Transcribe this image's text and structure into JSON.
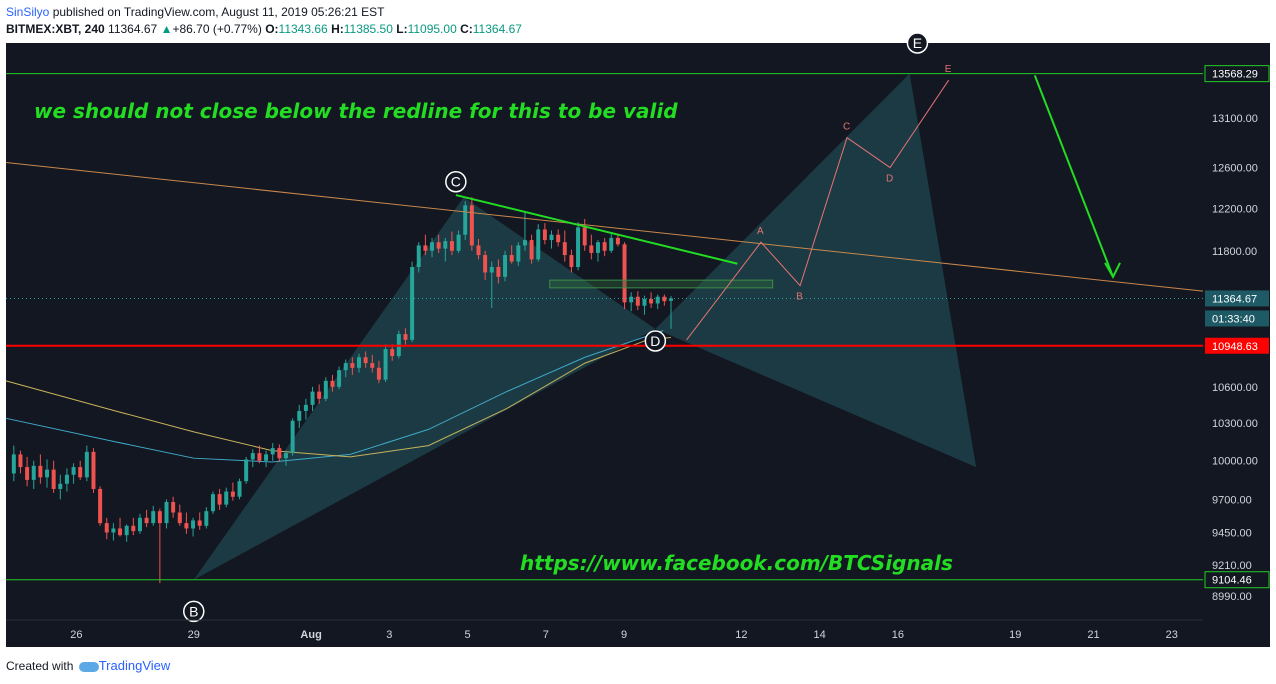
{
  "header": {
    "author": "SinSilyo",
    "published": " published on TradingView.com, August 11, 2019 05:26:21 EST",
    "symbol": "BITMEX:XBT, 240",
    "last": "11364.67",
    "change_arrow": "▲",
    "change": "+86.70 (+0.77%)",
    "o_label": "O:",
    "o": "11343.66",
    "h_label": "H:",
    "h": "11385.50",
    "l_label": "L:",
    "l": "11095.00",
    "c_label": "C:",
    "c": "11364.67"
  },
  "footer": {
    "created": "Created with",
    "brand": "TradingView"
  },
  "colors": {
    "background": "#131722",
    "bull": "#26a69a",
    "bear": "#ef5350",
    "redline": "#ff0000",
    "green": "#22dd22",
    "pattern": "#2a7a80"
  },
  "chart_data": {
    "type": "candlestick",
    "ylim": [
      8820,
      13900
    ],
    "y_scale": "log",
    "y_ticks": [
      "13100.00",
      "12600.00",
      "12200.00",
      "11800.00",
      "10600.00",
      "10300.00",
      "10000.00",
      "9700.00",
      "9450.00",
      "9210.00",
      "8990.00"
    ],
    "x_ticks": [
      {
        "label": "26",
        "x": 26
      },
      {
        "label": "29",
        "x": 29
      },
      {
        "label": "Aug",
        "x": 32
      },
      {
        "label": "3",
        "x": 34
      },
      {
        "label": "5",
        "x": 36
      },
      {
        "label": "7",
        "x": 38
      },
      {
        "label": "9",
        "x": 40
      },
      {
        "label": "12",
        "x": 43
      },
      {
        "label": "14",
        "x": 45
      },
      {
        "label": "16",
        "x": 47
      },
      {
        "label": "19",
        "x": 50
      },
      {
        "label": "21",
        "x": 52
      },
      {
        "label": "23",
        "x": 54
      }
    ],
    "x_range": [
      24.2,
      54.8
    ],
    "price_labels": [
      {
        "label": "13568.29",
        "value": 13568.29,
        "type": "green"
      },
      {
        "label": "11364.67",
        "value": 11364.67,
        "type": "last"
      },
      {
        "label": "01:33:40",
        "value": 11100,
        "type": "timer"
      },
      {
        "label": "10948.63",
        "value": 10948.63,
        "type": "red"
      },
      {
        "label": "9104.46",
        "value": 9104.46,
        "type": "green"
      }
    ],
    "horizontal_lines": [
      {
        "value": 13568.29,
        "color": "#22cc22"
      },
      {
        "value": 10948.63,
        "color": "#ff0000"
      },
      {
        "value": 9104.46,
        "color": "#22cc22"
      }
    ],
    "ohlc": [
      [
        9900,
        10120,
        9840,
        10050
      ],
      [
        10050,
        10080,
        9900,
        9950
      ],
      [
        9950,
        10030,
        9800,
        9850
      ],
      [
        9850,
        10000,
        9780,
        9960
      ],
      [
        9960,
        10050,
        9820,
        9870
      ],
      [
        9870,
        10010,
        9790,
        9930
      ],
      [
        9930,
        10000,
        9750,
        9780
      ],
      [
        9780,
        9890,
        9700,
        9820
      ],
      [
        9820,
        9940,
        9760,
        9890
      ],
      [
        9890,
        9980,
        9820,
        9950
      ],
      [
        9950,
        10000,
        9850,
        9870
      ],
      [
        9870,
        10120,
        9840,
        10070
      ],
      [
        10070,
        10100,
        9750,
        9780
      ],
      [
        9780,
        9800,
        9500,
        9520
      ],
      [
        9520,
        9560,
        9400,
        9450
      ],
      [
        9450,
        9520,
        9390,
        9480
      ],
      [
        9480,
        9560,
        9420,
        9430
      ],
      [
        9430,
        9510,
        9380,
        9500
      ],
      [
        9500,
        9560,
        9430,
        9460
      ],
      [
        9460,
        9590,
        9440,
        9560
      ],
      [
        9560,
        9620,
        9490,
        9520
      ],
      [
        9520,
        9650,
        9500,
        9610
      ],
      [
        9610,
        9630,
        9080,
        9520
      ],
      [
        9520,
        9700,
        9480,
        9680
      ],
      [
        9680,
        9720,
        9560,
        9600
      ],
      [
        9600,
        9660,
        9500,
        9520
      ],
      [
        9520,
        9600,
        9440,
        9480
      ],
      [
        9480,
        9560,
        9420,
        9540
      ],
      [
        9540,
        9600,
        9470,
        9500
      ],
      [
        9500,
        9640,
        9480,
        9610
      ],
      [
        9610,
        9760,
        9590,
        9740
      ],
      [
        9740,
        9780,
        9620,
        9660
      ],
      [
        9660,
        9790,
        9640,
        9760
      ],
      [
        9760,
        9830,
        9690,
        9720
      ],
      [
        9720,
        9860,
        9700,
        9840
      ],
      [
        9840,
        10030,
        9820,
        10010
      ],
      [
        10010,
        10090,
        9950,
        10060
      ],
      [
        10060,
        10120,
        9980,
        10000
      ],
      [
        10000,
        10080,
        9950,
        10050
      ],
      [
        10050,
        10140,
        10000,
        10100
      ],
      [
        10100,
        10130,
        9990,
        10020
      ],
      [
        10020,
        10080,
        9960,
        10060
      ],
      [
        10060,
        10340,
        10040,
        10320
      ],
      [
        10320,
        10450,
        10260,
        10400
      ],
      [
        10400,
        10500,
        10330,
        10450
      ],
      [
        10450,
        10600,
        10400,
        10560
      ],
      [
        10560,
        10620,
        10460,
        10500
      ],
      [
        10500,
        10680,
        10480,
        10650
      ],
      [
        10650,
        10700,
        10560,
        10600
      ],
      [
        10600,
        10770,
        10580,
        10740
      ],
      [
        10740,
        10830,
        10680,
        10800
      ],
      [
        10800,
        10850,
        10700,
        10760
      ],
      [
        10760,
        10880,
        10720,
        10850
      ],
      [
        10850,
        10900,
        10760,
        10800
      ],
      [
        10800,
        10870,
        10720,
        10760
      ],
      [
        10760,
        10820,
        10630,
        10660
      ],
      [
        10660,
        10960,
        10640,
        10920
      ],
      [
        10920,
        10960,
        10820,
        10860
      ],
      [
        10860,
        11080,
        10840,
        11050
      ],
      [
        11050,
        11100,
        10960,
        11000
      ],
      [
        11000,
        11700,
        10980,
        11650
      ],
      [
        11650,
        11880,
        11600,
        11850
      ],
      [
        11850,
        11950,
        11760,
        11800
      ],
      [
        11800,
        11920,
        11740,
        11880
      ],
      [
        11880,
        11950,
        11780,
        11820
      ],
      [
        11820,
        11920,
        11700,
        11890
      ],
      [
        11890,
        11980,
        11760,
        11800
      ],
      [
        11800,
        11990,
        11780,
        11950
      ],
      [
        11950,
        12270,
        11900,
        12230
      ],
      [
        12230,
        12310,
        11800,
        11850
      ],
      [
        11850,
        11910,
        11720,
        11760
      ],
      [
        11760,
        11800,
        11530,
        11600
      ],
      [
        11600,
        11700,
        11280,
        11650
      ],
      [
        11650,
        11720,
        11500,
        11560
      ],
      [
        11560,
        11800,
        11520,
        11760
      ],
      [
        11760,
        11850,
        11680,
        11700
      ],
      [
        11700,
        11880,
        11660,
        11850
      ],
      [
        11850,
        12170,
        11800,
        11900
      ],
      [
        11900,
        11950,
        11680,
        11720
      ],
      [
        11720,
        12050,
        11700,
        12000
      ],
      [
        12000,
        12060,
        11860,
        11900
      ],
      [
        11900,
        11990,
        11820,
        11950
      ],
      [
        11950,
        12000,
        11840,
        11880
      ],
      [
        11880,
        11990,
        11700,
        11760
      ],
      [
        11760,
        11810,
        11600,
        11650
      ],
      [
        11650,
        12070,
        11620,
        12020
      ],
      [
        12020,
        12100,
        11800,
        11850
      ],
      [
        11850,
        11950,
        11720,
        11780
      ],
      [
        11780,
        11900,
        11700,
        11880
      ],
      [
        11880,
        11920,
        11750,
        11800
      ],
      [
        11800,
        11960,
        11780,
        11920
      ],
      [
        11920,
        11960,
        11840,
        11860
      ],
      [
        11860,
        11880,
        11270,
        11330
      ],
      [
        11330,
        11420,
        11250,
        11380
      ],
      [
        11380,
        11430,
        11260,
        11300
      ],
      [
        11300,
        11390,
        11220,
        11360
      ],
      [
        11360,
        11420,
        11280,
        11320
      ],
      [
        11320,
        11400,
        11270,
        11380
      ],
      [
        11380,
        11400,
        11300,
        11340
      ],
      [
        11343.66,
        11385.5,
        11095,
        11364.67
      ]
    ],
    "annotations": [
      {
        "label": "we should not close below the redline for this to be valid",
        "type": "text"
      },
      {
        "label": "https://www.facebook.com/BTCSignals",
        "type": "text"
      },
      {
        "label": "B",
        "type": "circle"
      },
      {
        "label": "C",
        "type": "circle"
      },
      {
        "label": "D",
        "type": "circle"
      },
      {
        "label": "E",
        "type": "circle"
      },
      {
        "label": "A",
        "type": "point"
      },
      {
        "label": "B",
        "type": "point"
      },
      {
        "label": "C",
        "type": "point"
      },
      {
        "label": "D",
        "type": "point"
      },
      {
        "label": "E",
        "type": "point"
      }
    ]
  }
}
